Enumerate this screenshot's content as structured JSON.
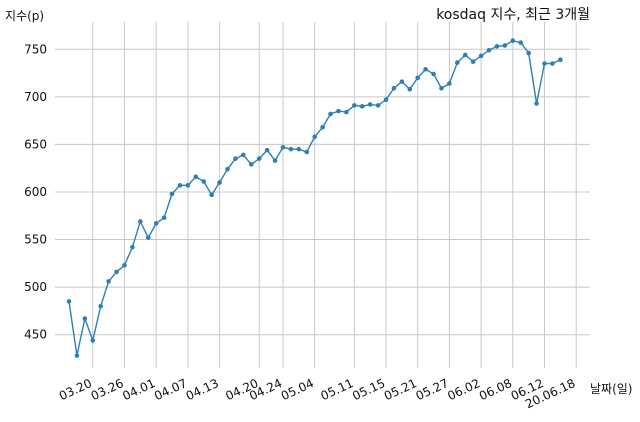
{
  "chart_data": {
    "type": "line",
    "title": "kosdaq 지수, 최근 3개월",
    "ylabel": "지수(p)",
    "xlabel": "날짜(일)",
    "ylim": [
      415,
      765
    ],
    "yticks": [
      450,
      500,
      550,
      600,
      650,
      700,
      750
    ],
    "grid": true,
    "line_color": "#2e7fb3",
    "xtick_labels": [
      "03.20",
      "03.26",
      "04.01",
      "04.07",
      "04.13",
      "04.20",
      "04.24",
      "05.04",
      "05.11",
      "05.15",
      "05.21",
      "05.27",
      "06.02",
      "06.08",
      "06.12",
      "20.06.18"
    ],
    "xtick_point_index": [
      3,
      7,
      11,
      15,
      19,
      24,
      27,
      31,
      36,
      40,
      44,
      48,
      52,
      56,
      60,
      64
    ],
    "series": [
      {
        "values": [
          485,
          428,
          467,
          444,
          480,
          506,
          516,
          523,
          542,
          569,
          552,
          567,
          573,
          598,
          607,
          607,
          616,
          611,
          597,
          610,
          624,
          635,
          639,
          629,
          635,
          644,
          633,
          647,
          645,
          645,
          642,
          658,
          668,
          682,
          685,
          684,
          691,
          690,
          692,
          691,
          697,
          709,
          716,
          708,
          720,
          729,
          724,
          709,
          714,
          736,
          744,
          737,
          743,
          749,
          753,
          754,
          759,
          757,
          746,
          693,
          735,
          735,
          739
        ]
      }
    ]
  }
}
